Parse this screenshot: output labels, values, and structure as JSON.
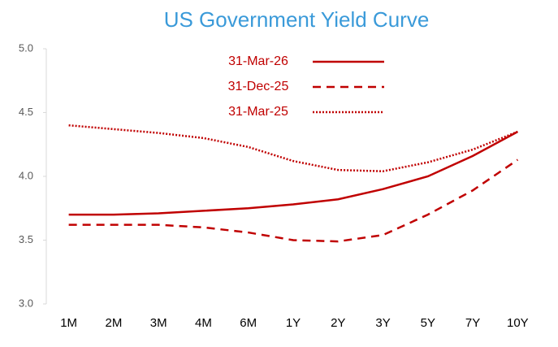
{
  "chart_data": {
    "type": "line",
    "title": "US Government Yield Curve",
    "categories": [
      "1M",
      "2M",
      "3M",
      "4M",
      "6M",
      "1Y",
      "2Y",
      "3Y",
      "5Y",
      "7Y",
      "10Y"
    ],
    "series": [
      {
        "name": "31-Mar-26",
        "color": "#c00000",
        "line_style": "solid",
        "values": [
          3.7,
          3.7,
          3.71,
          3.73,
          3.75,
          3.78,
          3.82,
          3.9,
          4.0,
          4.16,
          4.35
        ]
      },
      {
        "name": "31-Dec-25",
        "color": "#c00000",
        "line_style": "dashed",
        "values": [
          3.62,
          3.62,
          3.62,
          3.6,
          3.56,
          3.5,
          3.49,
          3.54,
          3.7,
          3.89,
          4.13
        ]
      },
      {
        "name": "31-Mar-25",
        "color": "#c00000",
        "line_style": "dotted",
        "values": [
          4.4,
          4.37,
          4.34,
          4.3,
          4.23,
          4.12,
          4.05,
          4.04,
          4.11,
          4.21,
          4.35
        ]
      }
    ],
    "ylim": [
      3.0,
      5.0
    ],
    "yticks": [
      {
        "value": 3,
        "label": "3.0"
      },
      {
        "value": 3.5,
        "label": "3.5"
      },
      {
        "value": 4,
        "label": "4.0"
      },
      {
        "value": 4.5,
        "label": "4.5"
      },
      {
        "value": 5,
        "label": "5.0"
      }
    ],
    "grid": false,
    "legend": "top"
  }
}
